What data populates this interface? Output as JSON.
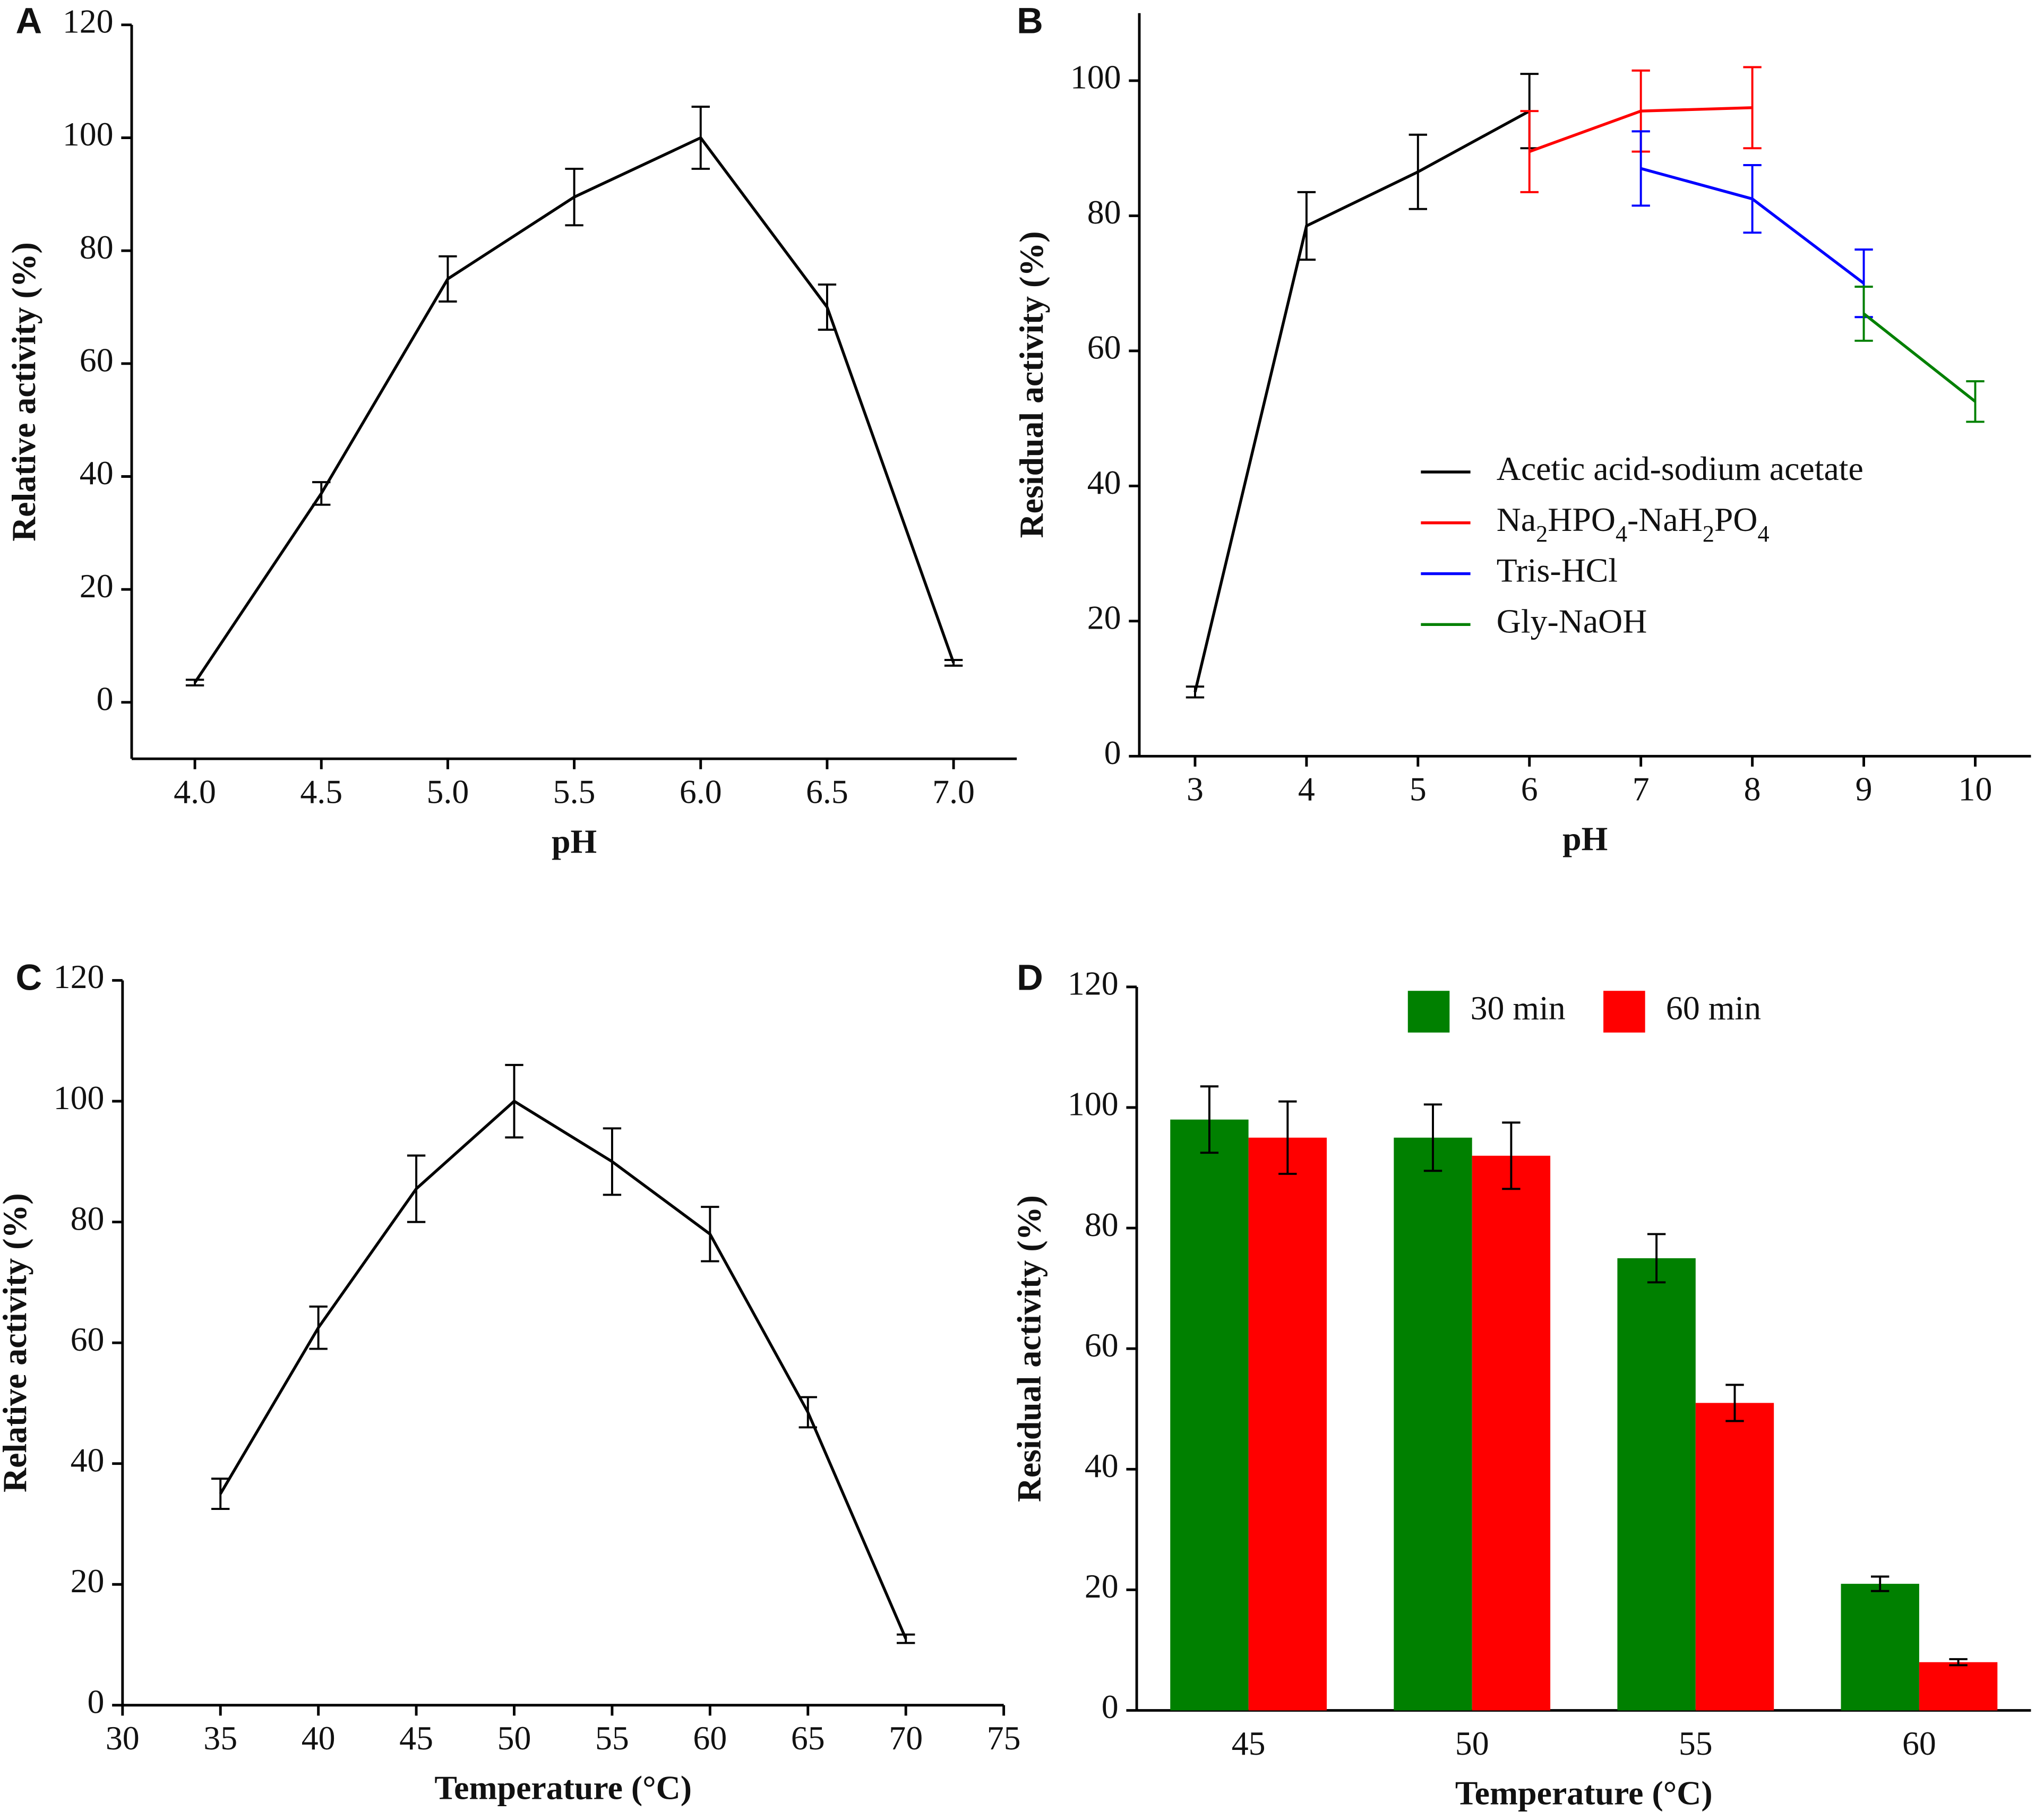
{
  "chart_data": [
    {
      "panel": "A",
      "type": "line",
      "xlabel": "pH",
      "ylabel": "Relative activity (%)",
      "x": [
        4,
        4.5,
        5,
        5.5,
        6,
        6.5,
        7
      ],
      "series": [
        {
          "color": "#000000",
          "values": [
            3.5,
            37,
            75,
            89.5,
            100,
            70,
            7
          ],
          "errors": [
            0.5,
            2,
            4,
            5,
            5.5,
            4,
            0.5
          ]
        }
      ],
      "xlim": [
        3.75,
        7.25
      ],
      "ylim": [
        -10,
        120
      ],
      "xticks": [
        {
          "value": 4,
          "label": "4.0"
        },
        {
          "value": 4.5,
          "label": "4.5"
        },
        {
          "value": 5,
          "label": "5.0"
        },
        {
          "value": 5.5,
          "label": "5.5"
        },
        {
          "value": 6,
          "label": "6.0"
        },
        {
          "value": 6.5,
          "label": "6.5"
        },
        {
          "value": 7,
          "label": "7.0"
        }
      ],
      "yticks": [
        0,
        20,
        40,
        60,
        80,
        100,
        120
      ]
    },
    {
      "panel": "B",
      "type": "line",
      "xlabel": "pH",
      "ylabel": "Residual activity (%)",
      "legend": "center right",
      "series": [
        {
          "name": "Acetic acid-sodium acetate",
          "color": "#000000",
          "x": [
            3,
            4,
            5,
            6
          ],
          "values": [
            9.5,
            78.5,
            86.5,
            95.5
          ],
          "errors": [
            0.8,
            5,
            5.5,
            5.5
          ]
        },
        {
          "name": "Na2HPO4-NaH2PO4",
          "color": "#ff0000",
          "x": [
            6,
            7,
            8
          ],
          "values": [
            89.5,
            95.5,
            96
          ],
          "errors": [
            6,
            6,
            6
          ]
        },
        {
          "name": "Tris-HCl",
          "color": "#0000ff",
          "x": [
            7,
            8,
            9
          ],
          "values": [
            87,
            82.5,
            70
          ],
          "errors": [
            5.5,
            5,
            5
          ]
        },
        {
          "name": "Gly-NaOH",
          "color": "#008000",
          "x": [
            9,
            10
          ],
          "values": [
            65.5,
            52.5
          ],
          "errors": [
            4,
            3
          ]
        }
      ],
      "xlim": [
        2.5,
        10.5
      ],
      "ylim": [
        0,
        110
      ],
      "xticks": [
        3,
        4,
        5,
        6,
        7,
        8,
        9,
        10
      ],
      "yticks": [
        0,
        20,
        40,
        60,
        80,
        100
      ]
    },
    {
      "panel": "C",
      "type": "line",
      "xlabel": "Temperature (°C)",
      "ylabel": "Relative activity (%)",
      "x": [
        35,
        40,
        45,
        50,
        55,
        60,
        65,
        70
      ],
      "series": [
        {
          "color": "#000000",
          "values": [
            35,
            62.5,
            85.5,
            100,
            90,
            78,
            48.5,
            11
          ],
          "errors": [
            2.5,
            3.5,
            5.5,
            6,
            5.5,
            4.5,
            2.5,
            0.7
          ]
        }
      ],
      "xlim": [
        30,
        75
      ],
      "ylim": [
        0,
        120
      ],
      "xticks": [
        30,
        35,
        40,
        45,
        50,
        55,
        60,
        65,
        70,
        75
      ],
      "yticks": [
        0,
        20,
        40,
        60,
        80,
        100,
        120
      ]
    },
    {
      "panel": "D",
      "type": "bar",
      "xlabel": "Temperature (°C)",
      "ylabel": "Residual activity (%)",
      "legend": "upper center",
      "categories": [
        "45",
        "50",
        "55",
        "60"
      ],
      "series": [
        {
          "name": "30 min",
          "color": "#008000",
          "values": [
            98,
            95,
            75,
            21
          ],
          "errors": [
            5.5,
            5.5,
            4,
            1.2
          ]
        },
        {
          "name": "60 min",
          "color": "#ff0000",
          "values": [
            95,
            92,
            51,
            8
          ],
          "errors": [
            6,
            5.5,
            3,
            0.5
          ]
        }
      ],
      "ylim": [
        0,
        120
      ],
      "yticks": [
        0,
        20,
        40,
        60,
        80,
        100,
        120
      ]
    }
  ]
}
